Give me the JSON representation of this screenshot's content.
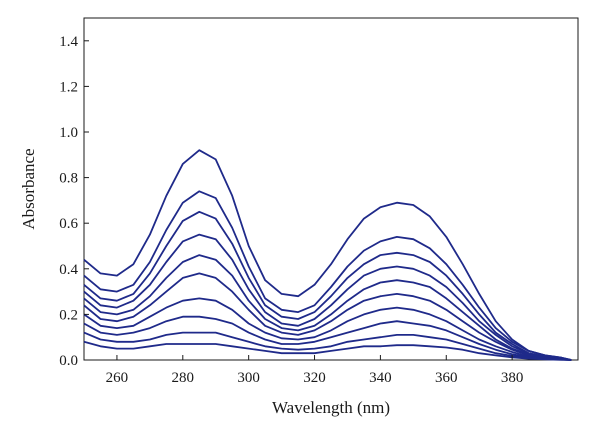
{
  "chart_data": {
    "type": "line",
    "title": "",
    "xlabel": "Wavelength (nm)",
    "ylabel": "Absorbance",
    "xlim": [
      250,
      400
    ],
    "ylim": [
      0.0,
      1.5
    ],
    "xticks": [
      260,
      280,
      300,
      320,
      340,
      360,
      380
    ],
    "yticks": [
      0.0,
      0.2,
      0.4,
      0.6,
      0.8,
      1.0,
      1.2,
      1.4
    ],
    "xtick_labels": [
      "260",
      "280",
      "300",
      "320",
      "340",
      "360",
      "380"
    ],
    "ytick_labels": [
      "0.0",
      "0.2",
      "0.4",
      "0.6",
      "0.8",
      "1.0",
      "1.2",
      "1.4"
    ],
    "grid": false,
    "legend": false,
    "line_color": "#1f2a8a",
    "x": [
      250,
      255,
      260,
      265,
      270,
      275,
      280,
      285,
      290,
      295,
      300,
      305,
      310,
      315,
      320,
      325,
      330,
      335,
      340,
      345,
      350,
      355,
      360,
      365,
      370,
      375,
      380,
      385,
      390,
      395,
      398
    ],
    "series": [
      {
        "values": [
          0.44,
          0.38,
          0.37,
          0.42,
          0.55,
          0.72,
          0.86,
          0.92,
          0.88,
          0.72,
          0.5,
          0.35,
          0.29,
          0.28,
          0.33,
          0.42,
          0.53,
          0.62,
          0.67,
          0.69,
          0.68,
          0.63,
          0.54,
          0.42,
          0.29,
          0.17,
          0.09,
          0.04,
          0.02,
          0.01,
          0.0
        ]
      },
      {
        "values": [
          0.37,
          0.31,
          0.3,
          0.33,
          0.43,
          0.57,
          0.69,
          0.74,
          0.71,
          0.58,
          0.41,
          0.27,
          0.22,
          0.21,
          0.24,
          0.32,
          0.41,
          0.48,
          0.52,
          0.54,
          0.53,
          0.49,
          0.42,
          0.33,
          0.23,
          0.14,
          0.08,
          0.04,
          0.02,
          0.01,
          0.0
        ]
      },
      {
        "values": [
          0.33,
          0.27,
          0.26,
          0.29,
          0.38,
          0.5,
          0.61,
          0.65,
          0.62,
          0.51,
          0.36,
          0.24,
          0.19,
          0.18,
          0.21,
          0.28,
          0.36,
          0.42,
          0.46,
          0.47,
          0.46,
          0.43,
          0.37,
          0.29,
          0.2,
          0.12,
          0.07,
          0.03,
          0.015,
          0.005,
          0.0
        ]
      },
      {
        "values": [
          0.3,
          0.24,
          0.23,
          0.26,
          0.33,
          0.43,
          0.52,
          0.55,
          0.53,
          0.44,
          0.31,
          0.21,
          0.16,
          0.15,
          0.18,
          0.24,
          0.31,
          0.37,
          0.4,
          0.41,
          0.4,
          0.37,
          0.32,
          0.25,
          0.17,
          0.11,
          0.06,
          0.03,
          0.015,
          0.005,
          0.0
        ]
      },
      {
        "values": [
          0.27,
          0.21,
          0.2,
          0.22,
          0.28,
          0.36,
          0.43,
          0.46,
          0.44,
          0.37,
          0.26,
          0.18,
          0.14,
          0.13,
          0.15,
          0.2,
          0.26,
          0.31,
          0.34,
          0.35,
          0.34,
          0.32,
          0.27,
          0.21,
          0.15,
          0.09,
          0.05,
          0.025,
          0.01,
          0.005,
          0.0
        ]
      },
      {
        "values": [
          0.24,
          0.18,
          0.17,
          0.19,
          0.24,
          0.3,
          0.36,
          0.38,
          0.36,
          0.3,
          0.22,
          0.15,
          0.12,
          0.11,
          0.13,
          0.17,
          0.22,
          0.26,
          0.28,
          0.29,
          0.28,
          0.26,
          0.22,
          0.17,
          0.12,
          0.08,
          0.045,
          0.02,
          0.01,
          0.005,
          0.0
        ]
      },
      {
        "values": [
          0.2,
          0.15,
          0.14,
          0.15,
          0.19,
          0.23,
          0.26,
          0.27,
          0.26,
          0.22,
          0.16,
          0.12,
          0.095,
          0.09,
          0.1,
          0.13,
          0.17,
          0.2,
          0.22,
          0.23,
          0.22,
          0.2,
          0.17,
          0.13,
          0.09,
          0.06,
          0.035,
          0.015,
          0.008,
          0.003,
          0.0
        ]
      },
      {
        "values": [
          0.16,
          0.12,
          0.11,
          0.12,
          0.14,
          0.17,
          0.19,
          0.19,
          0.18,
          0.16,
          0.12,
          0.09,
          0.07,
          0.07,
          0.08,
          0.1,
          0.12,
          0.14,
          0.16,
          0.17,
          0.16,
          0.15,
          0.13,
          0.1,
          0.07,
          0.045,
          0.025,
          0.012,
          0.006,
          0.002,
          0.0
        ]
      },
      {
        "values": [
          0.12,
          0.09,
          0.08,
          0.08,
          0.09,
          0.11,
          0.12,
          0.12,
          0.12,
          0.1,
          0.08,
          0.06,
          0.05,
          0.045,
          0.05,
          0.06,
          0.08,
          0.09,
          0.1,
          0.11,
          0.11,
          0.1,
          0.09,
          0.07,
          0.05,
          0.03,
          0.018,
          0.009,
          0.004,
          0.002,
          0.0
        ]
      },
      {
        "values": [
          0.08,
          0.06,
          0.05,
          0.05,
          0.06,
          0.07,
          0.07,
          0.07,
          0.07,
          0.06,
          0.05,
          0.04,
          0.03,
          0.03,
          0.03,
          0.04,
          0.05,
          0.06,
          0.06,
          0.065,
          0.065,
          0.06,
          0.055,
          0.045,
          0.03,
          0.02,
          0.012,
          0.006,
          0.003,
          0.001,
          0.0
        ]
      }
    ]
  }
}
